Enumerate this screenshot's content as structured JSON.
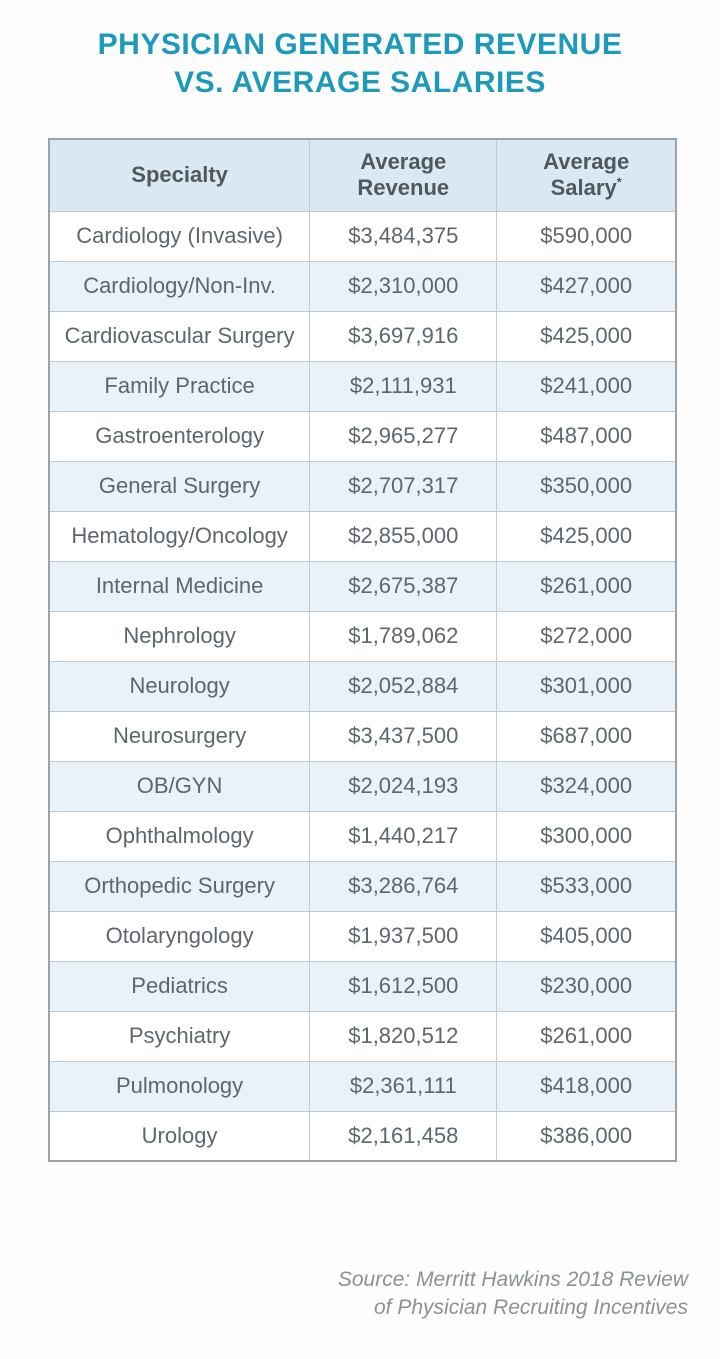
{
  "title": {
    "line1": "PHYSICIAN GENERATED REVENUE",
    "line2": "VS. AVERAGE SALARIES",
    "color": "#1d9aba"
  },
  "table": {
    "header": {
      "specialty": "Specialty",
      "revenue": "Average Revenue",
      "salary": "Average Salary",
      "salary_mark": "*"
    },
    "colors": {
      "title_color": "#1d9aba",
      "header_bg": "#d9e8f2",
      "alt_row_bg": "#e9f2f8",
      "row_bg": "#ffffff",
      "border": "#9aa3aa",
      "grid": "#c3cacf",
      "header_text": "#4f585f",
      "cell_text": "#5e666d"
    }
  },
  "source": {
    "line1": "Source: Merritt Hawkins 2018 Review",
    "line2": "of Physician Recruiting Incentives"
  },
  "chart_data": {
    "type": "table",
    "title": "PHYSICIAN GENERATED REVENUE VS. AVERAGE SALARIES",
    "columns": [
      "Specialty",
      "Average Revenue",
      "Average Salary*"
    ],
    "rows": [
      [
        "Cardiology (Invasive)",
        "$3,484,375",
        "$590,000"
      ],
      [
        "Cardiology/Non-Inv.",
        "$2,310,000",
        "$427,000"
      ],
      [
        "Cardiovascular Surgery",
        "$3,697,916",
        "$425,000"
      ],
      [
        "Family Practice",
        "$2,111,931",
        "$241,000"
      ],
      [
        "Gastroenterology",
        "$2,965,277",
        "$487,000"
      ],
      [
        "General Surgery",
        "$2,707,317",
        "$350,000"
      ],
      [
        "Hematology/Oncology",
        "$2,855,000",
        "$425,000"
      ],
      [
        "Internal Medicine",
        "$2,675,387",
        "$261,000"
      ],
      [
        "Nephrology",
        "$1,789,062",
        "$272,000"
      ],
      [
        "Neurology",
        "$2,052,884",
        "$301,000"
      ],
      [
        "Neurosurgery",
        "$3,437,500",
        "$687,000"
      ],
      [
        "OB/GYN",
        "$2,024,193",
        "$324,000"
      ],
      [
        "Ophthalmology",
        "$1,440,217",
        "$300,000"
      ],
      [
        "Orthopedic Surgery",
        "$3,286,764",
        "$533,000"
      ],
      [
        "Otolaryngology",
        "$1,937,500",
        "$405,000"
      ],
      [
        "Pediatrics",
        "$1,612,500",
        "$230,000"
      ],
      [
        "Psychiatry",
        "$1,820,512",
        "$261,000"
      ],
      [
        "Pulmonology",
        "$2,361,111",
        "$418,000"
      ],
      [
        "Urology",
        "$2,161,458",
        "$386,000"
      ]
    ],
    "source": "Source: Merritt Hawkins 2018 Review of Physician Recruiting Incentives",
    "layout": {
      "row_striping": "even-rows-light-blue",
      "alignment": "center"
    }
  }
}
